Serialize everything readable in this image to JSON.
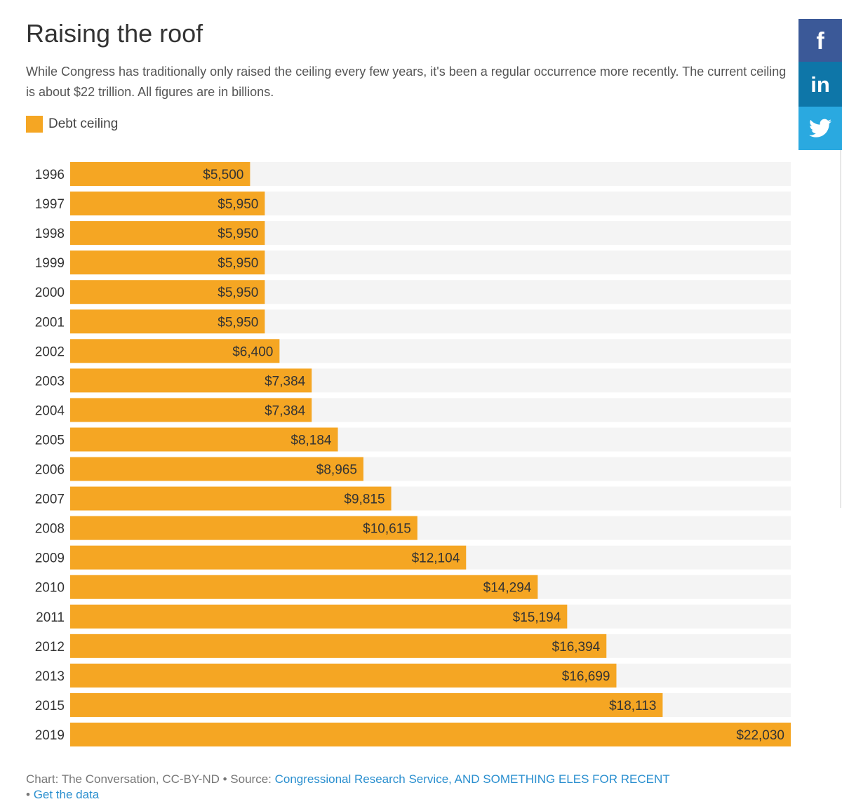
{
  "title": "Raising the roof",
  "subtitle": "While Congress has traditionally only raised the ceiling every few years, it's been a regular occurrence more recently. The current ceiling is about $22 trillion. All figures are in billions.",
  "legend": {
    "label": "Debt ceiling",
    "color": "#f5a623"
  },
  "colors": {
    "bar": "#f5a623",
    "track": "#f4f4f4",
    "link": "#2a8fcf"
  },
  "chart_data": {
    "type": "bar",
    "orientation": "horizontal",
    "categories": [
      "1996",
      "1997",
      "1998",
      "1999",
      "2000",
      "2001",
      "2002",
      "2003",
      "2004",
      "2005",
      "2006",
      "2007",
      "2008",
      "2009",
      "2010",
      "2011",
      "2012",
      "2013",
      "2015",
      "2019"
    ],
    "series": [
      {
        "name": "Debt ceiling",
        "values": [
          5500,
          5950,
          5950,
          5950,
          5950,
          5950,
          6400,
          7384,
          7384,
          8184,
          8965,
          9815,
          10615,
          12104,
          14294,
          15194,
          16394,
          16699,
          18113,
          22030
        ]
      }
    ],
    "value_labels": [
      "$5,500",
      "$5,950",
      "$5,950",
      "$5,950",
      "$5,950",
      "$5,950",
      "$6,400",
      "$7,384",
      "$7,384",
      "$8,184",
      "$8,965",
      "$9,815",
      "$10,615",
      "$12,104",
      "$14,294",
      "$15,194",
      "$16,394",
      "$16,699",
      "$18,113",
      "$22,030"
    ],
    "xlim": [
      0,
      22030
    ],
    "grid": false,
    "legend_position": "top-left"
  },
  "footer": {
    "credit": "Chart: The Conversation, CC-BY-ND • Source: ",
    "source_link": "Congressional Research Service, AND SOMETHING ELES FOR RECENT",
    "bullet": "• ",
    "data_link": "Get the data"
  },
  "share": [
    {
      "network": "facebook",
      "icon": "facebook-icon",
      "glyph": "f",
      "color": "#3b5998"
    },
    {
      "network": "linkedin",
      "icon": "linkedin-icon",
      "glyph": "in",
      "color": "#0e76a8"
    },
    {
      "network": "twitter",
      "icon": "twitter-icon",
      "glyph": "",
      "color": "#2aa9e0"
    }
  ]
}
